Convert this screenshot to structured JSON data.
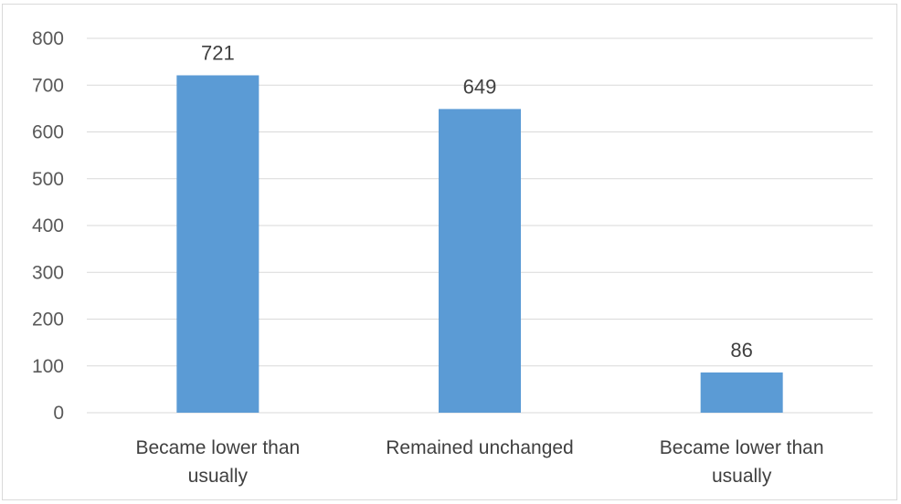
{
  "chart_data": {
    "type": "bar",
    "categories": [
      [
        "Became lower than",
        "usually"
      ],
      [
        "Remained unchanged"
      ],
      [
        "Became lower than",
        "usually"
      ]
    ],
    "values": [
      721,
      649,
      86
    ],
    "ylim": [
      0,
      800
    ],
    "yticks": [
      0,
      100,
      200,
      300,
      400,
      500,
      600,
      700,
      800
    ],
    "grid": true,
    "data_labels": true,
    "bar_color": "#5b9bd5",
    "grid_color": "#d9d9d9"
  }
}
